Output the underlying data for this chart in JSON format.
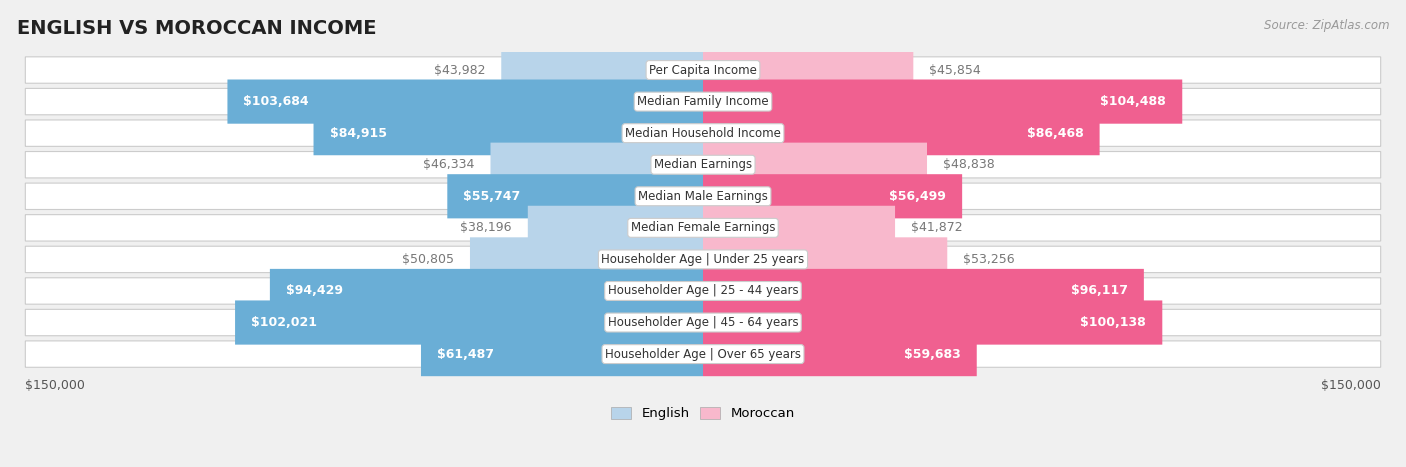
{
  "title": "ENGLISH VS MOROCCAN INCOME",
  "source": "Source: ZipAtlas.com",
  "categories": [
    "Per Capita Income",
    "Median Family Income",
    "Median Household Income",
    "Median Earnings",
    "Median Male Earnings",
    "Median Female Earnings",
    "Householder Age | Under 25 years",
    "Householder Age | 25 - 44 years",
    "Householder Age | 45 - 64 years",
    "Householder Age | Over 65 years"
  ],
  "english_values": [
    43982,
    103684,
    84915,
    46334,
    55747,
    38196,
    50805,
    94429,
    102021,
    61487
  ],
  "moroccan_values": [
    45854,
    104488,
    86468,
    48838,
    56499,
    41872,
    53256,
    96117,
    100138,
    59683
  ],
  "english_labels": [
    "$43,982",
    "$103,684",
    "$84,915",
    "$46,334",
    "$55,747",
    "$38,196",
    "$50,805",
    "$94,429",
    "$102,021",
    "$61,487"
  ],
  "moroccan_labels": [
    "$45,854",
    "$104,488",
    "$86,468",
    "$48,838",
    "$56,499",
    "$41,872",
    "$53,256",
    "$96,117",
    "$100,138",
    "$59,683"
  ],
  "english_color_light": "#b8d4ea",
  "english_color_dark": "#6aaed6",
  "moroccan_color_light": "#f8b8cc",
  "moroccan_color_dark": "#f06090",
  "label_color_inside": "#ffffff",
  "label_color_outside": "#777777",
  "background_color": "#f0f0f0",
  "row_background": "#ffffff",
  "row_edge_color": "#cccccc",
  "max_value": 150000,
  "legend_english": "English",
  "legend_moroccan": "Moroccan",
  "title_fontsize": 14,
  "label_fontsize": 9,
  "category_fontsize": 8.5,
  "inside_label_threshold": 55000
}
